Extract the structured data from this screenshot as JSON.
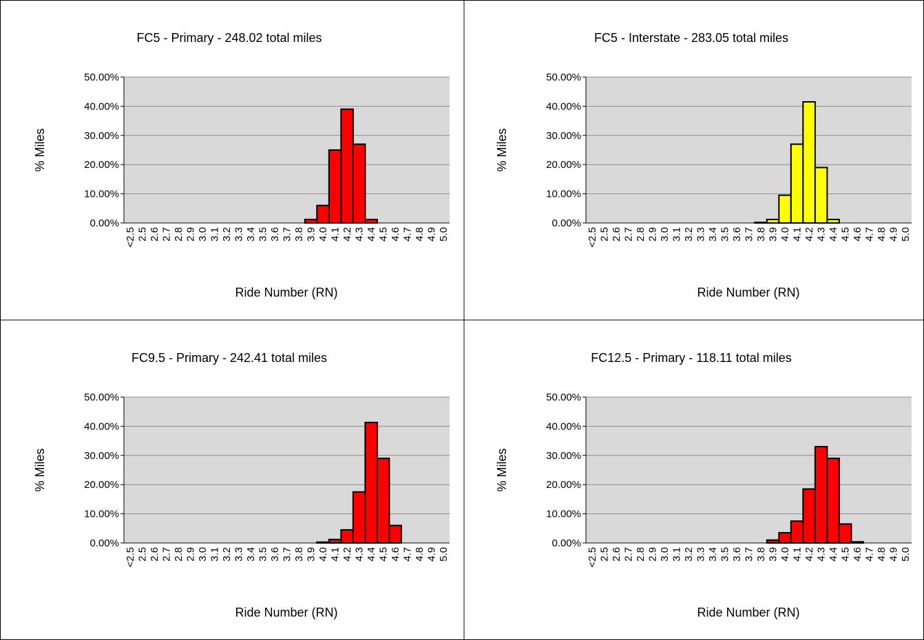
{
  "chart_data": [
    {
      "type": "bar",
      "title": "FC5 - Primary - 248.02 total miles",
      "xlabel": "Ride Number (RN)",
      "ylabel": "% Miles",
      "categories": [
        "<2.5",
        "2.5",
        "2.6",
        "2.7",
        "2.8",
        "2.9",
        "3.0",
        "3.1",
        "3.2",
        "3.3",
        "3.4",
        "3.5",
        "3.6",
        "3.7",
        "3.8",
        "3.9",
        "4.0",
        "4.1",
        "4.2",
        "4.3",
        "4.4",
        "4.5",
        "4.6",
        "4.7",
        "4.8",
        "4.9",
        "5.0"
      ],
      "values": [
        0,
        0,
        0,
        0,
        0,
        0,
        0,
        0,
        0,
        0,
        0,
        0,
        0,
        0,
        0,
        1.2,
        6,
        25,
        39,
        27,
        1.2,
        0,
        0,
        0,
        0,
        0,
        0
      ],
      "color": "#ff0000",
      "ylim": [
        0,
        50
      ],
      "yticks": [
        {
          "value": 0,
          "label": "0.00%"
        },
        {
          "value": 10,
          "label": "10.00%"
        },
        {
          "value": 20,
          "label": "20.00%"
        },
        {
          "value": 30,
          "label": "30.00%"
        },
        {
          "value": 40,
          "label": "40.00%"
        },
        {
          "value": 50,
          "label": "50.00%"
        }
      ],
      "grid": true
    },
    {
      "type": "bar",
      "title": "FC5 - Interstate - 283.05 total miles",
      "xlabel": "Ride Number (RN)",
      "ylabel": "% Miles",
      "categories": [
        "<2.5",
        "2.5",
        "2.6",
        "2.7",
        "2.8",
        "2.9",
        "3.0",
        "3.1",
        "3.2",
        "3.3",
        "3.4",
        "3.5",
        "3.6",
        "3.7",
        "3.8",
        "3.9",
        "4.0",
        "4.1",
        "4.2",
        "4.3",
        "4.4",
        "4.5",
        "4.6",
        "4.7",
        "4.8",
        "4.9",
        "5.0"
      ],
      "values": [
        0,
        0,
        0,
        0,
        0,
        0,
        0,
        0,
        0,
        0,
        0,
        0,
        0,
        0,
        0.2,
        1.2,
        9.5,
        27,
        41.5,
        19,
        1.2,
        0,
        0,
        0,
        0,
        0,
        0
      ],
      "color": "#ffff00",
      "ylim": [
        0,
        50
      ],
      "yticks": [
        {
          "value": 0,
          "label": "0.00%"
        },
        {
          "value": 10,
          "label": "10.00%"
        },
        {
          "value": 20,
          "label": "20.00%"
        },
        {
          "value": 30,
          "label": "30.00%"
        },
        {
          "value": 40,
          "label": "40.00%"
        },
        {
          "value": 50,
          "label": "50.00%"
        }
      ],
      "grid": true
    },
    {
      "type": "bar",
      "title": "FC9.5 - Primary - 242.41 total miles",
      "xlabel": "Ride Number (RN)",
      "ylabel": "% Miles",
      "categories": [
        "<2.5",
        "2.5",
        "2.6",
        "2.7",
        "2.8",
        "2.9",
        "3.0",
        "3.1",
        "3.2",
        "3.3",
        "3.4",
        "3.5",
        "3.6",
        "3.7",
        "3.8",
        "3.9",
        "4.0",
        "4.1",
        "4.2",
        "4.3",
        "4.4",
        "4.5",
        "4.6",
        "4.7",
        "4.8",
        "4.9",
        "5.0"
      ],
      "values": [
        0,
        0,
        0,
        0,
        0,
        0,
        0,
        0,
        0,
        0,
        0,
        0,
        0,
        0,
        0,
        0,
        0.3,
        1.2,
        4.5,
        17.5,
        41.3,
        29,
        6,
        0,
        0,
        0,
        0
      ],
      "color": "#ff0000",
      "ylim": [
        0,
        50
      ],
      "yticks": [
        {
          "value": 0,
          "label": "0.00%"
        },
        {
          "value": 10,
          "label": "10.00%"
        },
        {
          "value": 20,
          "label": "20.00%"
        },
        {
          "value": 30,
          "label": "30.00%"
        },
        {
          "value": 40,
          "label": "40.00%"
        },
        {
          "value": 50,
          "label": "50.00%"
        }
      ],
      "grid": true
    },
    {
      "type": "bar",
      "title": "FC12.5 - Primary - 118.11 total miles",
      "xlabel": "Ride Number (RN)",
      "ylabel": "% Miles",
      "categories": [
        "<2.5",
        "2.5",
        "2.6",
        "2.7",
        "2.8",
        "2.9",
        "3.0",
        "3.1",
        "3.2",
        "3.3",
        "3.4",
        "3.5",
        "3.6",
        "3.7",
        "3.8",
        "3.9",
        "4.0",
        "4.1",
        "4.2",
        "4.3",
        "4.4",
        "4.5",
        "4.6",
        "4.7",
        "4.8",
        "4.9",
        "5.0"
      ],
      "values": [
        0,
        0,
        0,
        0,
        0,
        0,
        0,
        0,
        0,
        0,
        0,
        0,
        0,
        0,
        0,
        1,
        3.5,
        7.5,
        18.5,
        33,
        29,
        6.5,
        0.4,
        0,
        0,
        0,
        0
      ],
      "color": "#ff0000",
      "ylim": [
        0,
        50
      ],
      "yticks": [
        {
          "value": 0,
          "label": "0.00%"
        },
        {
          "value": 10,
          "label": "10.00%"
        },
        {
          "value": 20,
          "label": "20.00%"
        },
        {
          "value": 30,
          "label": "30.00%"
        },
        {
          "value": 40,
          "label": "40.00%"
        },
        {
          "value": 50,
          "label": "50.00%"
        }
      ],
      "grid": true
    }
  ]
}
